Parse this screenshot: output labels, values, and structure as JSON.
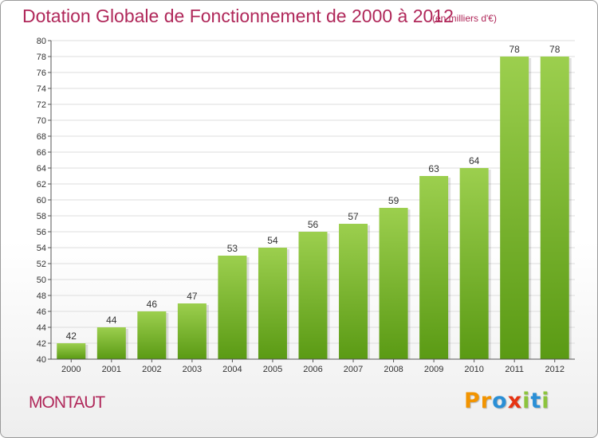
{
  "title": "Dotation Globale de Fonctionnement de 2000 à 2012",
  "subtitle": "(en milliers d'€)",
  "commune": "MONTAUT",
  "logo": {
    "text": "Proxiti",
    "letters": [
      "P",
      "r",
      "o",
      "x",
      "i",
      "t",
      "i"
    ],
    "colors": [
      "#f29400",
      "#f29400",
      "#2a8fd6",
      "#e63312",
      "#8cc43d",
      "#2a8fd6",
      "#8cc43d"
    ]
  },
  "colors": {
    "title": "#b0285a",
    "bar_top": "#9ccf4e",
    "bar_bottom": "#5a9a14",
    "grid": "#dddddd",
    "axis": "#555555"
  },
  "chart_data": {
    "type": "bar",
    "categories": [
      "2000",
      "2001",
      "2002",
      "2003",
      "2004",
      "2005",
      "2006",
      "2007",
      "2008",
      "2009",
      "2010",
      "2011",
      "2012"
    ],
    "values": [
      42,
      44,
      46,
      47,
      53,
      54,
      56,
      57,
      59,
      63,
      64,
      78,
      78
    ],
    "title": "Dotation Globale de Fonctionnement de 2000 à 2012",
    "subtitle": "(en milliers d'€)",
    "xlabel": "",
    "ylabel": "",
    "ylim": [
      40,
      80
    ],
    "ytick_step": 2,
    "grid": true,
    "data_labels": true
  }
}
